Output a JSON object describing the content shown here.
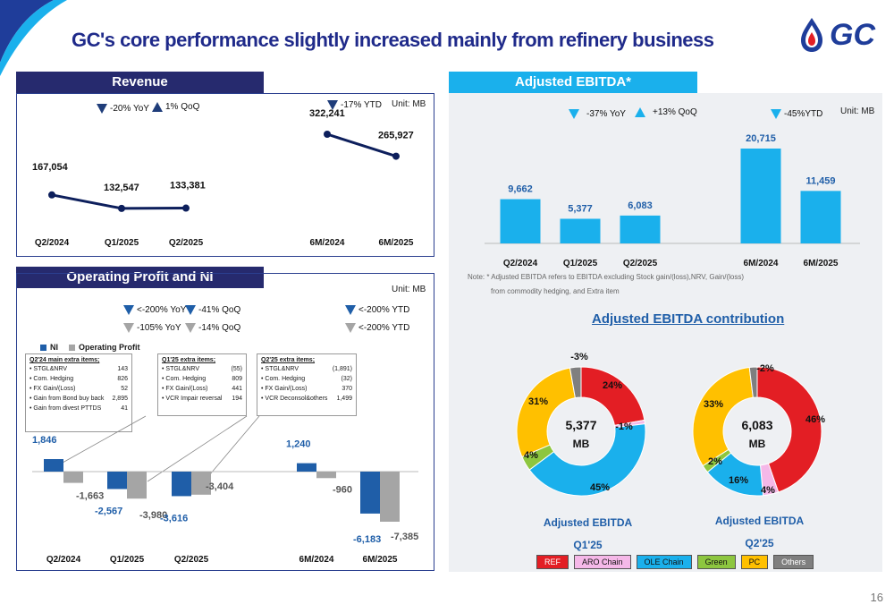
{
  "title": "GC's core performance slightly increased mainly from refinery business",
  "logo_text": "GC",
  "page_number": "16",
  "revenue": {
    "header": "Revenue",
    "unit": "Unit: MB",
    "indicators": {
      "yoy": "-20% YoY",
      "qoq": "1% QoQ",
      "ytd": "-17% YTD"
    },
    "chart_data": {
      "type": "line",
      "categories": [
        "Q2/2024",
        "Q1/2025",
        "Q2/2025",
        "6M/2024",
        "6M/2025"
      ],
      "values": [
        167054,
        132547,
        133381,
        322241,
        265927
      ],
      "value_labels": [
        "167,054",
        "132,547",
        "133,381",
        "322,241",
        "265,927"
      ],
      "color": "#0d1f5c"
    }
  },
  "ebitda": {
    "header": "Adjusted EBITDA*",
    "unit": "Unit: MB",
    "indicators": {
      "yoy": "-37% YoY",
      "qoq": "+13% QoQ",
      "ytd": "-45%YTD"
    },
    "note_line1": "Note: * Adjusted EBITDA refers to EBITDA excluding Stock gain/(loss),NRV, Gain/(loss)",
    "note_line2": "from commodity hedging, and Extra item",
    "chart_data": {
      "type": "bar",
      "categories": [
        "Q2/2024",
        "Q1/2025",
        "Q2/2025",
        "6M/2024",
        "6M/2025"
      ],
      "values": [
        9662,
        5377,
        6083,
        20715,
        11459
      ],
      "value_labels": [
        "9,662",
        "5,377",
        "6,083",
        "20,715",
        "11,459"
      ],
      "color": "#1ab0ec"
    }
  },
  "contribution": {
    "title": "Adjusted EBITDA contribution",
    "legend": [
      {
        "name": "REF",
        "color": "#e31e24"
      },
      {
        "name": "ARO Chain",
        "color": "#f5b8e8"
      },
      {
        "name": "OLE Chain",
        "color": "#1ab0ec"
      },
      {
        "name": "Green",
        "color": "#8dc63f"
      },
      {
        "name": "PC",
        "color": "#ffc000"
      },
      {
        "name": "Others",
        "color": "#7f7f7f"
      }
    ],
    "charts": [
      {
        "center_value": "5,377",
        "center_unit": "MB",
        "caption": "Adjusted EBITDA",
        "period": "Q1'25",
        "chart_data": {
          "type": "pie",
          "labels": [
            "REF",
            "ARO Chain",
            "OLE Chain",
            "Green",
            "PC",
            "Others"
          ],
          "values": [
            24,
            -1,
            45,
            4,
            31,
            -3
          ],
          "value_labels": [
            "24%",
            "-1%",
            "45%",
            "4%",
            "31%",
            "-3%"
          ]
        }
      },
      {
        "center_value": "6,083",
        "center_unit": "MB",
        "caption": "Adjusted EBITDA",
        "period": "Q2'25",
        "chart_data": {
          "type": "pie",
          "labels": [
            "REF",
            "ARO Chain",
            "OLE Chain",
            "Green",
            "PC",
            "Others"
          ],
          "values": [
            46,
            4,
            16,
            2,
            33,
            -2
          ],
          "value_labels": [
            "46%",
            "4%",
            "16%",
            "2%",
            "33%",
            "-2%"
          ]
        }
      }
    ]
  },
  "opni": {
    "header": "Operating Profit and NI",
    "unit": "Unit: MB",
    "indicators": {
      "ni_yoy": "<-200% YoY",
      "ni_qoq": "-41% QoQ",
      "ni_ytd": "<-200% YTD",
      "op_yoy": "-105% YoY",
      "op_qoq": "-14% QoQ",
      "op_ytd": "<-200% YTD"
    },
    "legend": {
      "ni": "NI",
      "op": "Operating Profit"
    },
    "extra_boxes": [
      {
        "title": "Q2'24  main extra items;",
        "items": [
          {
            "name": "STGL&NRV",
            "value": "143"
          },
          {
            "name": "Com. Hedging",
            "value": "826"
          },
          {
            "name": "FX Gain/(Loss)",
            "value": "52"
          },
          {
            "name": "Gain from Bond buy back",
            "value": "2,895"
          },
          {
            "name": "Gain from divest PTTDS",
            "value": "41"
          }
        ]
      },
      {
        "title": "Q1'25 extra items;",
        "items": [
          {
            "name": "STGL&NRV",
            "value": "(55)"
          },
          {
            "name": "Com. Hedging",
            "value": "809"
          },
          {
            "name": "FX Gain/(Loss)",
            "value": "441"
          },
          {
            "name": "VCR Impair reversal",
            "value": "194"
          }
        ]
      },
      {
        "title": "Q2'25 extra items;",
        "items": [
          {
            "name": "STGL&NRV",
            "value": "(1,891)"
          },
          {
            "name": "Com. Hedging",
            "value": "(32)"
          },
          {
            "name": "FX Gain/(Loss)",
            "value": "370"
          },
          {
            "name": "VCR Deconsol&others",
            "value": "1,499"
          }
        ]
      }
    ],
    "chart_data": {
      "type": "bar",
      "categories": [
        "Q2/2024",
        "Q1/2025",
        "Q2/2025",
        "6M/2024",
        "6M/2025"
      ],
      "series": [
        {
          "name": "NI",
          "values": [
            1846,
            -2567,
            -3616,
            1240,
            -6183
          ],
          "labels": [
            "1,846",
            "-2,567",
            "-3,616",
            "1,240",
            "-6,183"
          ],
          "color": "#1f5ea8"
        },
        {
          "name": "Operating Profit",
          "values": [
            -1663,
            -3980,
            -3404,
            -960,
            -7385
          ],
          "labels": [
            "-1,663",
            "-3,980",
            "-3,404",
            "-960",
            "-7,385"
          ],
          "color": "#a5a5a5"
        }
      ]
    }
  }
}
